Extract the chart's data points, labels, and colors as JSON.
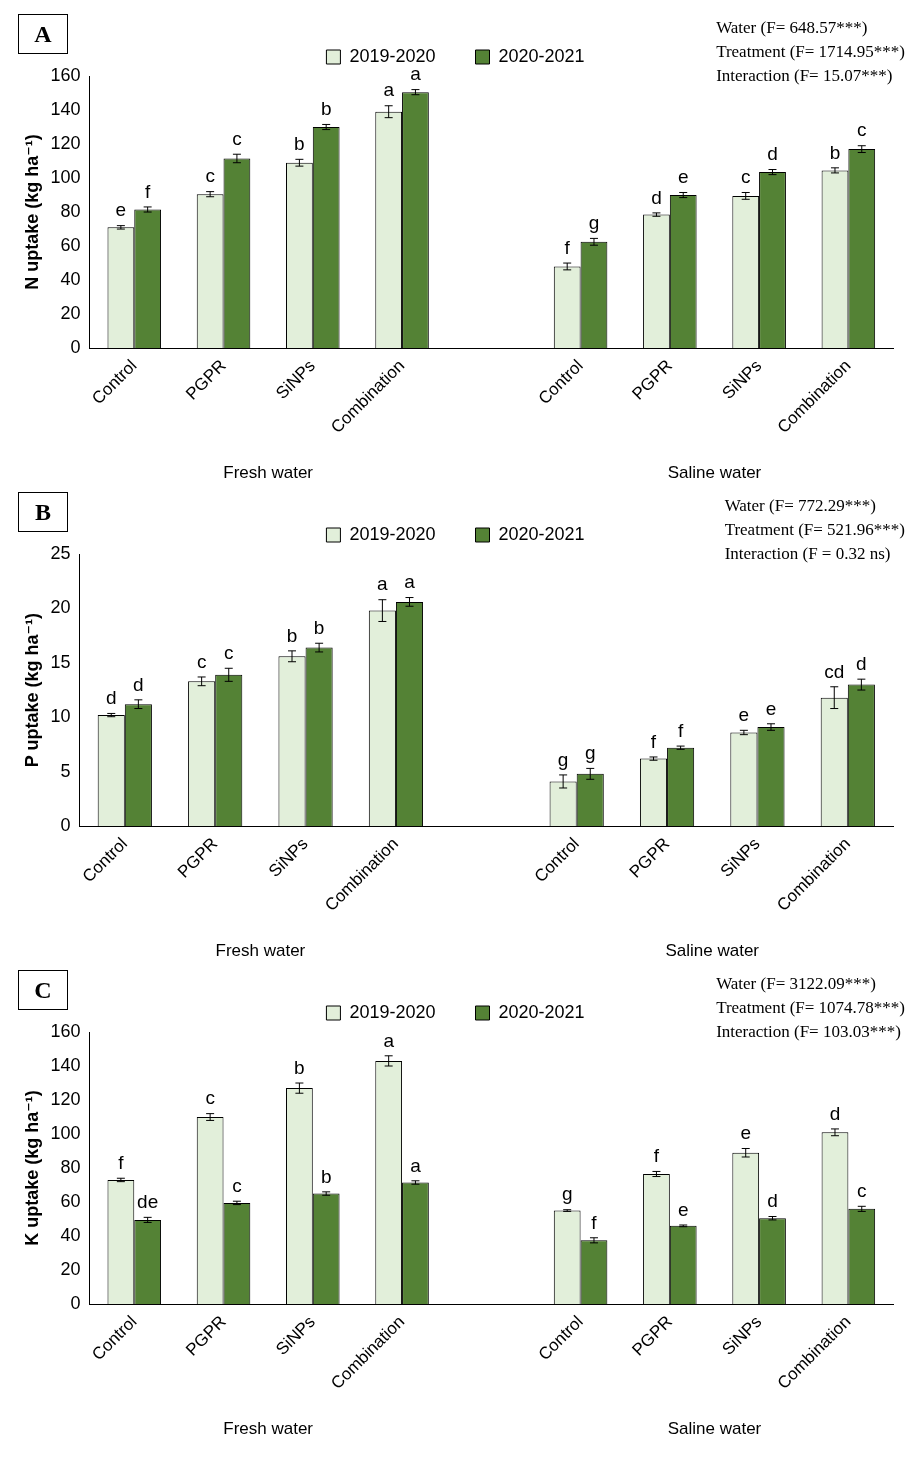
{
  "chart_data": [
    {
      "type": "bar",
      "title": "A",
      "ylabel": "N uptake (kg ha⁻¹)",
      "categories": [
        "Control",
        "PGPR",
        "SiNPs",
        "Combination",
        null,
        "Control",
        "PGPR",
        "SiNPs",
        "Combination"
      ],
      "ylim": [
        0,
        160
      ],
      "yticks": [
        0,
        20,
        40,
        60,
        80,
        100,
        120,
        140,
        160
      ],
      "grid": false,
      "legend": "top",
      "series": [
        {
          "name": "2019-2020",
          "color": "#e2efda",
          "values": [
            71,
            90.5,
            109,
            139,
            null,
            48,
            78.5,
            89.5,
            104.5
          ],
          "errors": [
            1,
            1.5,
            2,
            3.5,
            null,
            2,
            1,
            2,
            1.5
          ],
          "value_labels": [
            "e",
            "c",
            "b",
            "a",
            null,
            "f",
            "d",
            "c",
            "b"
          ]
        },
        {
          "name": "2020-2021",
          "color": "#548235",
          "values": [
            81.5,
            111.5,
            130,
            150.5,
            null,
            62.5,
            90,
            103.5,
            117
          ],
          "errors": [
            1.5,
            2.5,
            1.5,
            1.5,
            null,
            2,
            1.5,
            1.5,
            2
          ],
          "value_labels": [
            "f",
            "c",
            "b",
            "a",
            null,
            "g",
            "e",
            "d",
            "c"
          ]
        }
      ],
      "annotations": [
        "Fresh water",
        "Saline water",
        "Water (F= 648.57***)",
        "Treatment (F= 1714.95***)",
        "Interaction (F= 15.07***)"
      ]
    },
    {
      "type": "bar",
      "title": "B",
      "ylabel": "P uptake (kg ha⁻¹)",
      "categories": [
        "Control",
        "PGPR",
        "SiNPs",
        "Combination",
        null,
        "Control",
        "PGPR",
        "SiNPs",
        "Combination"
      ],
      "ylim": [
        0,
        25
      ],
      "yticks": [
        0,
        5,
        10,
        15,
        20,
        25
      ],
      "grid": false,
      "legend": "top",
      "series": [
        {
          "name": "2019-2020",
          "color": "#e2efda",
          "values": [
            10.2,
            13.3,
            15.6,
            19.8,
            null,
            4.1,
            6.2,
            8.6,
            11.8
          ],
          "errors": [
            0.15,
            0.4,
            0.5,
            1.0,
            null,
            0.6,
            0.15,
            0.2,
            1.0
          ],
          "value_labels": [
            "d",
            "c",
            "b",
            "a",
            null,
            "g",
            "f",
            "e",
            "cd"
          ]
        },
        {
          "name": "2020-2021",
          "color": "#548235",
          "values": [
            11.2,
            13.9,
            16.4,
            20.6,
            null,
            4.8,
            7.2,
            9.1,
            13.0
          ],
          "errors": [
            0.4,
            0.6,
            0.4,
            0.4,
            null,
            0.5,
            0.15,
            0.3,
            0.5
          ],
          "value_labels": [
            "d",
            "c",
            "b",
            "a",
            null,
            "g",
            "f",
            "e",
            "d"
          ]
        }
      ],
      "annotations": [
        "Fresh water",
        "Saline water",
        "Water (F= 772.29***)",
        "Treatment (F= 521.96***)",
        "Interaction (F = 0.32 ns)"
      ]
    },
    {
      "type": "bar",
      "title": "C",
      "ylabel": "K uptake (kg ha⁻¹)",
      "categories": [
        "Control",
        "PGPR",
        "SiNPs",
        "Combination",
        null,
        "Control",
        "PGPR",
        "SiNPs",
        "Combination"
      ],
      "ylim": [
        0,
        160
      ],
      "yticks": [
        0,
        20,
        40,
        60,
        80,
        100,
        120,
        140,
        160
      ],
      "grid": false,
      "legend": "top",
      "series": [
        {
          "name": "2019-2020",
          "color": "#e2efda",
          "values": [
            73,
            110,
            127,
            143,
            null,
            55,
            76.5,
            89,
            101
          ],
          "errors": [
            1,
            2,
            3,
            3,
            null,
            0.5,
            1.5,
            2.5,
            2
          ],
          "value_labels": [
            "f",
            "c",
            "b",
            "a",
            null,
            "g",
            "f",
            "e",
            "d"
          ]
        },
        {
          "name": "2020-2021",
          "color": "#548235",
          "values": [
            49.5,
            59.5,
            65,
            71.5,
            null,
            37.5,
            46,
            50.5,
            56
          ],
          "errors": [
            1.5,
            1,
            1,
            1,
            null,
            1.5,
            0.5,
            1,
            1.5
          ],
          "value_labels": [
            "de",
            "c",
            "b",
            "a",
            null,
            "f",
            "e",
            "d",
            "c"
          ]
        }
      ],
      "annotations": [
        "Fresh water",
        "Saline water",
        "Water (F= 3122.09***)",
        "Treatment (F= 1074.78***)",
        "Interaction (F= 103.03***)"
      ]
    }
  ]
}
